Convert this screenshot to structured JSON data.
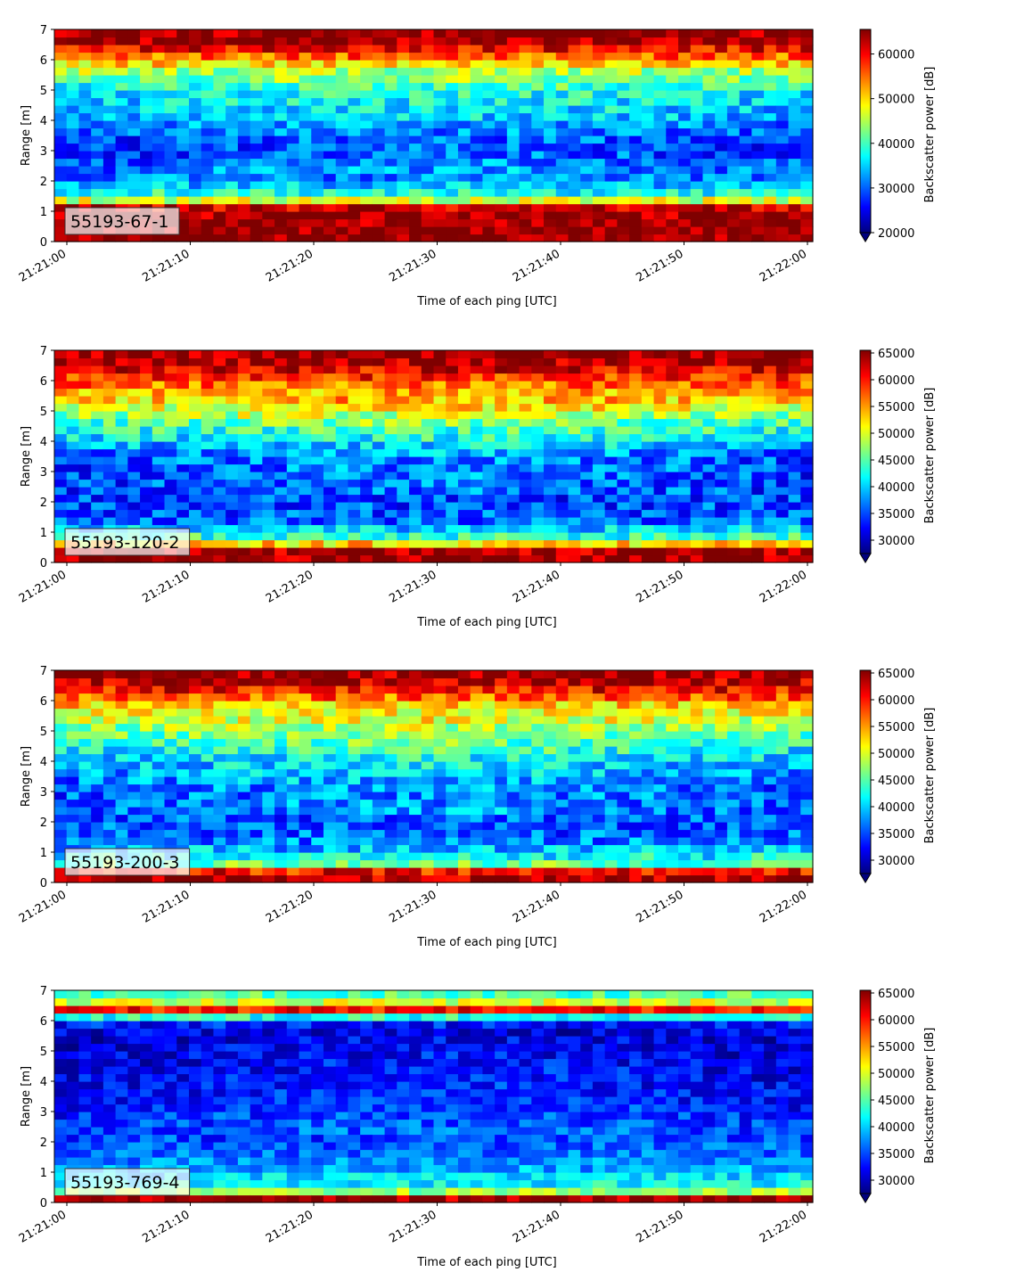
{
  "figure": {
    "colormap": "jet",
    "colors": {
      "jet": [
        "#00007f",
        "#0000ff",
        "#007fff",
        "#00ffff",
        "#7fff7f",
        "#ffff00",
        "#ff7f00",
        "#ff0000",
        "#7f0000"
      ]
    }
  },
  "chart_data": [
    {
      "type": "heatmap",
      "label": "55193-67-1",
      "xlabel": "Time of each ping [UTC]",
      "ylabel": "Range [m]",
      "colorbar_label": "Backscatter power [dB]",
      "x_ticks": [
        "21:21:00",
        "21:21:10",
        "21:21:20",
        "21:21:30",
        "21:21:40",
        "21:21:50",
        "21:22:00"
      ],
      "y_ticks": [
        "0",
        "1",
        "2",
        "3",
        "4",
        "5",
        "6",
        "7"
      ],
      "ylim": [
        0,
        7
      ],
      "colorbar_ticks": [
        "20000",
        "30000",
        "40000",
        "50000",
        "60000"
      ],
      "clim": [
        20000,
        65500
      ],
      "colorbar_extend": "min",
      "n_time_bins": 62,
      "n_range_bins": 28,
      "seed": 11,
      "profile": [
        {
          "range": 0.0,
          "value": 65000
        },
        {
          "range": 0.2,
          "value": 65000
        },
        {
          "range": 1.1,
          "value": 64000
        },
        {
          "range": 1.3,
          "value": 50000
        },
        {
          "range": 1.5,
          "value": 40000
        },
        {
          "range": 2.0,
          "value": 32000
        },
        {
          "range": 3.0,
          "value": 27000
        },
        {
          "range": 3.5,
          "value": 28000
        },
        {
          "range": 4.2,
          "value": 33000
        },
        {
          "range": 5.0,
          "value": 36000
        },
        {
          "range": 5.6,
          "value": 44000
        },
        {
          "range": 6.2,
          "value": 57000
        },
        {
          "range": 6.6,
          "value": 64000
        },
        {
          "range": 7.0,
          "value": 65000
        }
      ],
      "noise": 5000
    },
    {
      "type": "heatmap",
      "label": "55193-120-2",
      "xlabel": "Time of each ping [UTC]",
      "ylabel": "Range [m]",
      "colorbar_label": "Backscatter power [dB]",
      "x_ticks": [
        "21:21:00",
        "21:21:10",
        "21:21:20",
        "21:21:30",
        "21:21:40",
        "21:21:50",
        "21:22:00"
      ],
      "y_ticks": [
        "0",
        "1",
        "2",
        "3",
        "4",
        "5",
        "6",
        "7"
      ],
      "ylim": [
        0,
        7
      ],
      "colorbar_ticks": [
        "30000",
        "35000",
        "40000",
        "45000",
        "50000",
        "55000",
        "60000",
        "65000"
      ],
      "clim": [
        27500,
        65500
      ],
      "colorbar_extend": "min",
      "n_time_bins": 62,
      "n_range_bins": 28,
      "seed": 23,
      "profile": [
        {
          "range": 0.0,
          "value": 65000
        },
        {
          "range": 0.5,
          "value": 64000
        },
        {
          "range": 0.7,
          "value": 46000
        },
        {
          "range": 1.0,
          "value": 42000
        },
        {
          "range": 1.4,
          "value": 36000
        },
        {
          "range": 2.5,
          "value": 34000
        },
        {
          "range": 3.5,
          "value": 35000
        },
        {
          "range": 4.5,
          "value": 43000
        },
        {
          "range": 5.2,
          "value": 50000
        },
        {
          "range": 6.0,
          "value": 58000
        },
        {
          "range": 6.6,
          "value": 64000
        },
        {
          "range": 7.0,
          "value": 65000
        }
      ],
      "noise": 4500
    },
    {
      "type": "heatmap",
      "label": "55193-200-3",
      "xlabel": "Time of each ping [UTC]",
      "ylabel": "Range [m]",
      "colorbar_label": "Backscatter power [dB]",
      "x_ticks": [
        "21:21:00",
        "21:21:10",
        "21:21:20",
        "21:21:30",
        "21:21:40",
        "21:21:50",
        "21:22:00"
      ],
      "y_ticks": [
        "0",
        "1",
        "2",
        "3",
        "4",
        "5",
        "6",
        "7"
      ],
      "ylim": [
        0,
        7
      ],
      "colorbar_ticks": [
        "30000",
        "35000",
        "40000",
        "45000",
        "50000",
        "55000",
        "60000",
        "65000"
      ],
      "clim": [
        27500,
        65500
      ],
      "colorbar_extend": "min",
      "n_time_bins": 62,
      "n_range_bins": 28,
      "seed": 37,
      "profile": [
        {
          "range": 0.0,
          "value": 65000
        },
        {
          "range": 0.35,
          "value": 62000
        },
        {
          "range": 0.6,
          "value": 46000
        },
        {
          "range": 1.0,
          "value": 40000
        },
        {
          "range": 1.5,
          "value": 36000
        },
        {
          "range": 3.0,
          "value": 35000
        },
        {
          "range": 4.0,
          "value": 39000
        },
        {
          "range": 5.0,
          "value": 45000
        },
        {
          "range": 5.8,
          "value": 52000
        },
        {
          "range": 6.3,
          "value": 60000
        },
        {
          "range": 6.7,
          "value": 64000
        },
        {
          "range": 7.0,
          "value": 65000
        }
      ],
      "noise": 4500
    },
    {
      "type": "heatmap",
      "label": "55193-769-4",
      "xlabel": "Time of each ping [UTC]",
      "ylabel": "Range [m]",
      "colorbar_label": "Backscatter power [dB]",
      "x_ticks": [
        "21:21:00",
        "21:21:10",
        "21:21:20",
        "21:21:30",
        "21:21:40",
        "21:21:50",
        "21:22:00"
      ],
      "y_ticks": [
        "0",
        "1",
        "2",
        "3",
        "4",
        "5",
        "6",
        "7"
      ],
      "ylim": [
        0,
        7
      ],
      "colorbar_ticks": [
        "30000",
        "35000",
        "40000",
        "45000",
        "50000",
        "55000",
        "60000",
        "65000"
      ],
      "clim": [
        27500,
        65500
      ],
      "colorbar_extend": "min",
      "n_time_bins": 62,
      "n_range_bins": 28,
      "seed": 53,
      "profile": [
        {
          "range": 0.0,
          "value": 62000
        },
        {
          "range": 0.2,
          "value": 65000
        },
        {
          "range": 0.35,
          "value": 48000
        },
        {
          "range": 0.6,
          "value": 42000
        },
        {
          "range": 1.2,
          "value": 38000
        },
        {
          "range": 2.0,
          "value": 35000
        },
        {
          "range": 3.5,
          "value": 32000
        },
        {
          "range": 5.5,
          "value": 30000
        },
        {
          "range": 6.0,
          "value": 34000
        },
        {
          "range": 6.4,
          "value": 62000
        },
        {
          "range": 6.6,
          "value": 50000
        },
        {
          "range": 7.0,
          "value": 42000
        }
      ],
      "noise": 3500
    }
  ]
}
